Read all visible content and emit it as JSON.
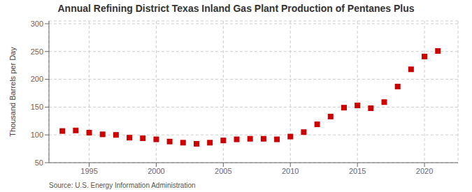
{
  "chart_data": {
    "type": "scatter",
    "title": "Annual Refining District Texas Inland Gas Plant Production of Pentanes Plus",
    "ylabel": "Thousand Barrels per Day",
    "annotations": [
      "Source: U.S. Energy Information Administration"
    ],
    "x": [
      1993,
      1994,
      1995,
      1996,
      1997,
      1998,
      1999,
      2000,
      2001,
      2002,
      2003,
      2004,
      2005,
      2006,
      2007,
      2008,
      2009,
      2010,
      2011,
      2012,
      2013,
      2014,
      2015,
      2016,
      2017,
      2018,
      2019,
      2020,
      2021
    ],
    "values": [
      107,
      108,
      104,
      101,
      100,
      95,
      94,
      92,
      88,
      86,
      84,
      86,
      90,
      92,
      93,
      93,
      92,
      97,
      105,
      119,
      133,
      149,
      153,
      148,
      159,
      187,
      218,
      241,
      251
    ],
    "color": "#cc0000",
    "marker": "square",
    "xlim": [
      1992.0,
      2022.5
    ],
    "xticks": [
      1995,
      2000,
      2005,
      2010,
      2015,
      2020
    ],
    "ylim": [
      50,
      305
    ],
    "yticks": [
      50,
      100,
      150,
      200,
      250,
      300
    ],
    "grid": true
  }
}
